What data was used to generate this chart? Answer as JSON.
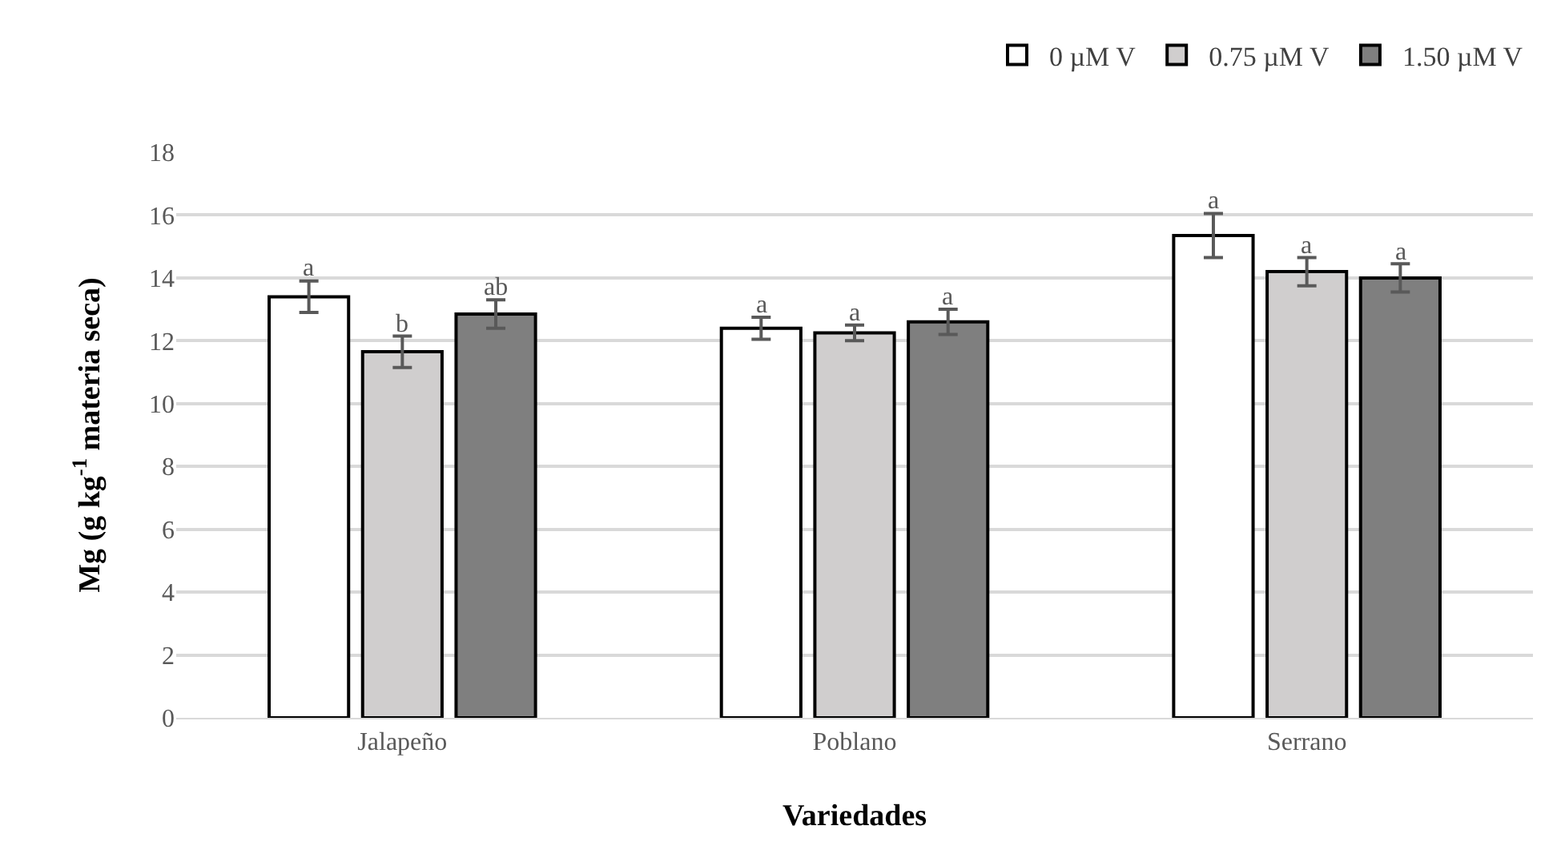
{
  "chart_data": {
    "type": "bar",
    "xlabel": "Variedades",
    "ylabel": "Mg (g kg$^{-1}$ materia seca)",
    "categories": [
      "Jalapeño",
      "Poblano",
      "Serrano"
    ],
    "series": [
      {
        "name": "0 µM V",
        "color": "#ffffff",
        "values": [
          13.4,
          12.4,
          15.35
        ],
        "errors": [
          0.5,
          0.35,
          0.7
        ],
        "value_labels": [
          "a",
          "a",
          "a"
        ]
      },
      {
        "name": "0.75 µM V",
        "color": "#d0cece",
        "values": [
          11.65,
          12.25,
          14.2
        ],
        "errors": [
          0.5,
          0.25,
          0.45
        ],
        "value_labels": [
          "b",
          "a",
          "a"
        ]
      },
      {
        "name": "1.50 µM V",
        "color": "#7f7f7f",
        "values": [
          12.85,
          12.6,
          14.0
        ],
        "errors": [
          0.45,
          0.4,
          0.45
        ],
        "value_labels": [
          "ab",
          "a",
          "a"
        ]
      }
    ],
    "ylim": [
      0,
      18
    ],
    "yticks": [
      0,
      2,
      4,
      6,
      8,
      10,
      12,
      14,
      16,
      18
    ],
    "grid": "y",
    "legend": "top right"
  }
}
